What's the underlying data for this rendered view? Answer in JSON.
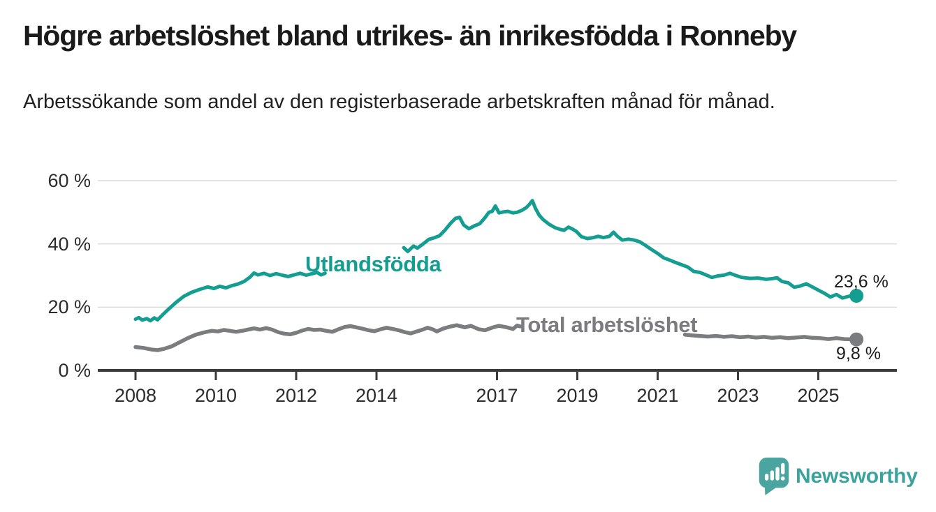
{
  "header": {
    "title": "Högre arbetslöshet bland utrikes- än inrikesfödda i Ronneby",
    "subtitle": "Arbetssökande som andel av den registerbaserade arbetskraften månad för månad."
  },
  "chart_data": {
    "type": "line",
    "title": "Högre arbetslöshet bland utrikes- än inrikesfödda i Ronneby",
    "xlabel": "",
    "ylabel": "Arbetssökande som andel av den registerbaserade arbetskraften",
    "ylim": [
      0,
      60
    ],
    "xlim": [
      2007.1,
      2027.0
    ],
    "grid": "horizontal",
    "legend_position": "inline-labels",
    "y_axis": {
      "ticks": [
        0,
        20,
        40,
        60
      ],
      "labels": [
        "0 %",
        "20 %",
        "40 %",
        "60 %"
      ]
    },
    "x_axis": {
      "ticks": [
        2008,
        2010,
        2012,
        2014,
        2017,
        2019,
        2021,
        2023,
        2025
      ],
      "labels": [
        "2008",
        "2010",
        "2012",
        "2014",
        "2017",
        "2019",
        "2021",
        "2023",
        "2025"
      ]
    },
    "series": [
      {
        "name": "Utlandsfödda",
        "color": "#149e91",
        "line_width": 5,
        "end_value": 23.6,
        "end_label": "23,6 %",
        "note": "line interrupted 2012.8-2014.6 by inline series label",
        "segments": [
          [
            [
              2008.0,
              16.2
            ],
            [
              2008.08,
              16.7
            ],
            [
              2008.17,
              15.9
            ],
            [
              2008.28,
              16.4
            ],
            [
              2008.37,
              15.7
            ],
            [
              2008.47,
              16.6
            ],
            [
              2008.55,
              16.0
            ],
            [
              2008.7,
              17.9
            ],
            [
              2008.85,
              19.7
            ],
            [
              2009.0,
              21.4
            ],
            [
              2009.2,
              23.4
            ],
            [
              2009.4,
              24.7
            ],
            [
              2009.6,
              25.6
            ],
            [
              2009.8,
              26.4
            ],
            [
              2009.95,
              25.9
            ],
            [
              2010.1,
              26.6
            ],
            [
              2010.25,
              26.1
            ],
            [
              2010.4,
              26.8
            ],
            [
              2010.55,
              27.3
            ],
            [
              2010.7,
              28.1
            ],
            [
              2010.85,
              29.5
            ],
            [
              2010.95,
              30.8
            ],
            [
              2011.05,
              30.2
            ],
            [
              2011.2,
              30.7
            ],
            [
              2011.35,
              30.0
            ],
            [
              2011.5,
              30.6
            ],
            [
              2011.65,
              30.1
            ],
            [
              2011.8,
              29.7
            ],
            [
              2011.95,
              30.2
            ],
            [
              2012.1,
              30.7
            ],
            [
              2012.25,
              30.1
            ],
            [
              2012.4,
              30.6
            ],
            [
              2012.52,
              31.0
            ],
            [
              2012.62,
              30.2
            ],
            [
              2012.72,
              30.7
            ]
          ],
          [
            [
              2014.68,
              38.8
            ],
            [
              2014.78,
              37.6
            ],
            [
              2014.92,
              39.3
            ],
            [
              2015.02,
              38.7
            ],
            [
              2015.18,
              40.2
            ],
            [
              2015.3,
              41.4
            ],
            [
              2015.45,
              42.0
            ],
            [
              2015.57,
              42.6
            ],
            [
              2015.7,
              44.3
            ],
            [
              2015.85,
              46.6
            ],
            [
              2015.97,
              48.1
            ],
            [
              2016.07,
              48.4
            ],
            [
              2016.17,
              46.0
            ],
            [
              2016.3,
              44.8
            ],
            [
              2016.45,
              45.8
            ],
            [
              2016.57,
              46.4
            ],
            [
              2016.7,
              48.3
            ],
            [
              2016.8,
              50.0
            ],
            [
              2016.88,
              50.3
            ],
            [
              2016.96,
              52.0
            ],
            [
              2017.05,
              49.8
            ],
            [
              2017.15,
              50.1
            ],
            [
              2017.27,
              50.3
            ],
            [
              2017.4,
              49.8
            ],
            [
              2017.5,
              50.0
            ],
            [
              2017.62,
              50.6
            ],
            [
              2017.72,
              51.4
            ],
            [
              2017.8,
              52.4
            ],
            [
              2017.88,
              53.7
            ],
            [
              2017.96,
              51.2
            ],
            [
              2018.05,
              49.1
            ],
            [
              2018.15,
              47.7
            ],
            [
              2018.3,
              46.2
            ],
            [
              2018.45,
              45.1
            ],
            [
              2018.57,
              44.6
            ],
            [
              2018.67,
              44.3
            ],
            [
              2018.78,
              45.3
            ],
            [
              2018.88,
              44.7
            ],
            [
              2018.98,
              43.9
            ],
            [
              2019.1,
              42.3
            ],
            [
              2019.25,
              41.7
            ],
            [
              2019.4,
              42.0
            ],
            [
              2019.52,
              42.4
            ],
            [
              2019.65,
              42.0
            ],
            [
              2019.8,
              42.4
            ],
            [
              2019.9,
              43.7
            ],
            [
              2020.0,
              42.4
            ],
            [
              2020.12,
              41.2
            ],
            [
              2020.27,
              41.5
            ],
            [
              2020.42,
              41.2
            ],
            [
              2020.55,
              40.7
            ],
            [
              2020.7,
              39.5
            ],
            [
              2020.85,
              38.2
            ],
            [
              2021.0,
              37.0
            ],
            [
              2021.15,
              35.6
            ],
            [
              2021.3,
              34.9
            ],
            [
              2021.45,
              34.1
            ],
            [
              2021.6,
              33.4
            ],
            [
              2021.75,
              32.7
            ],
            [
              2021.9,
              31.3
            ],
            [
              2022.05,
              31.0
            ],
            [
              2022.2,
              30.2
            ],
            [
              2022.35,
              29.4
            ],
            [
              2022.5,
              29.9
            ],
            [
              2022.65,
              30.1
            ],
            [
              2022.8,
              30.7
            ],
            [
              2022.95,
              30.0
            ],
            [
              2023.1,
              29.4
            ],
            [
              2023.3,
              29.1
            ],
            [
              2023.5,
              29.2
            ],
            [
              2023.7,
              28.8
            ],
            [
              2023.85,
              29.0
            ],
            [
              2023.97,
              29.3
            ],
            [
              2024.1,
              28.1
            ],
            [
              2024.25,
              27.7
            ],
            [
              2024.4,
              26.3
            ],
            [
              2024.55,
              26.7
            ],
            [
              2024.7,
              27.4
            ],
            [
              2024.85,
              26.4
            ],
            [
              2025.0,
              25.4
            ],
            [
              2025.15,
              24.4
            ],
            [
              2025.3,
              23.2
            ],
            [
              2025.45,
              24.0
            ],
            [
              2025.6,
              22.9
            ],
            [
              2025.78,
              23.5
            ],
            [
              2025.95,
              23.6
            ]
          ]
        ]
      },
      {
        "name": "Total arbetslöshet",
        "color": "#7b7c80",
        "line_width": 5.5,
        "end_value": 9.8,
        "end_label": "9,8 %",
        "note": "line interrupted 2017.6-2021.6 by inline series label",
        "segments": [
          [
            [
              2008.0,
              7.4
            ],
            [
              2008.2,
              7.1
            ],
            [
              2008.4,
              6.6
            ],
            [
              2008.55,
              6.4
            ],
            [
              2008.7,
              6.8
            ],
            [
              2008.9,
              7.6
            ],
            [
              2009.1,
              8.9
            ],
            [
              2009.3,
              10.2
            ],
            [
              2009.5,
              11.3
            ],
            [
              2009.7,
              12.0
            ],
            [
              2009.9,
              12.5
            ],
            [
              2010.05,
              12.3
            ],
            [
              2010.2,
              12.8
            ],
            [
              2010.35,
              12.5
            ],
            [
              2010.5,
              12.2
            ],
            [
              2010.65,
              12.5
            ],
            [
              2010.8,
              12.9
            ],
            [
              2010.95,
              13.3
            ],
            [
              2011.1,
              12.9
            ],
            [
              2011.25,
              13.4
            ],
            [
              2011.4,
              12.9
            ],
            [
              2011.55,
              12.1
            ],
            [
              2011.7,
              11.6
            ],
            [
              2011.85,
              11.4
            ],
            [
              2012.0,
              11.9
            ],
            [
              2012.15,
              12.6
            ],
            [
              2012.3,
              13.1
            ],
            [
              2012.45,
              12.8
            ],
            [
              2012.6,
              12.9
            ],
            [
              2012.75,
              12.5
            ],
            [
              2012.9,
              12.2
            ],
            [
              2013.05,
              13.0
            ],
            [
              2013.2,
              13.7
            ],
            [
              2013.35,
              14.0
            ],
            [
              2013.5,
              13.6
            ],
            [
              2013.65,
              13.2
            ],
            [
              2013.8,
              12.7
            ],
            [
              2013.95,
              12.4
            ],
            [
              2014.1,
              13.0
            ],
            [
              2014.25,
              13.5
            ],
            [
              2014.4,
              13.1
            ],
            [
              2014.55,
              12.7
            ],
            [
              2014.7,
              12.1
            ],
            [
              2014.85,
              11.7
            ],
            [
              2015.0,
              12.3
            ],
            [
              2015.15,
              12.9
            ],
            [
              2015.27,
              13.5
            ],
            [
              2015.4,
              13.0
            ],
            [
              2015.5,
              12.3
            ],
            [
              2015.65,
              13.2
            ],
            [
              2015.85,
              13.9
            ],
            [
              2016.0,
              14.3
            ],
            [
              2016.2,
              13.6
            ],
            [
              2016.35,
              14.1
            ],
            [
              2016.55,
              13.0
            ],
            [
              2016.7,
              12.7
            ],
            [
              2016.9,
              13.6
            ],
            [
              2017.05,
              14.1
            ],
            [
              2017.25,
              13.6
            ],
            [
              2017.4,
              13.1
            ],
            [
              2017.5,
              14.2
            ],
            [
              2017.58,
              13.9
            ]
          ],
          [
            [
              2021.68,
              11.3
            ],
            [
              2021.85,
              11.1
            ],
            [
              2022.05,
              10.9
            ],
            [
              2022.25,
              10.7
            ],
            [
              2022.45,
              10.9
            ],
            [
              2022.65,
              10.6
            ],
            [
              2022.85,
              10.8
            ],
            [
              2023.05,
              10.5
            ],
            [
              2023.25,
              10.7
            ],
            [
              2023.45,
              10.4
            ],
            [
              2023.65,
              10.6
            ],
            [
              2023.85,
              10.3
            ],
            [
              2024.05,
              10.5
            ],
            [
              2024.25,
              10.2
            ],
            [
              2024.45,
              10.4
            ],
            [
              2024.65,
              10.6
            ],
            [
              2024.85,
              10.3
            ],
            [
              2025.05,
              10.2
            ],
            [
              2025.25,
              9.9
            ],
            [
              2025.45,
              10.2
            ],
            [
              2025.65,
              9.9
            ],
            [
              2025.95,
              9.8
            ]
          ]
        ]
      }
    ],
    "colors": {
      "gridline": "#dadada",
      "axis": "#3b3b3b",
      "axis_text": "#2c2c2c",
      "value_label_text": "#1a1a1a"
    }
  },
  "logo": {
    "text": "Newsworthy",
    "icon": "newsworthy-bubble-chart-icon",
    "icon_color": "#4aa5a0",
    "text_color": "#3ba39d"
  }
}
